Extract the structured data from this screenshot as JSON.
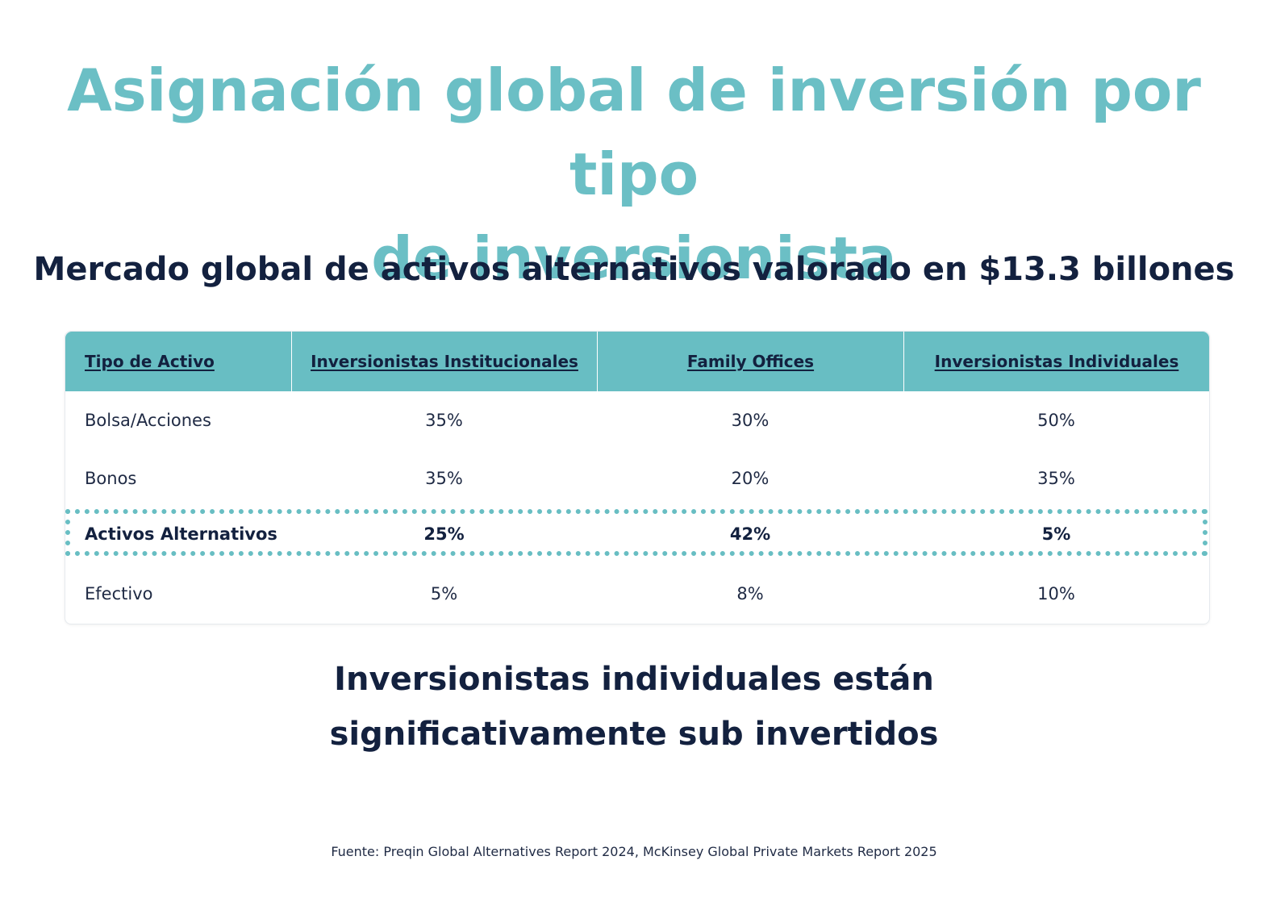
{
  "title_line1": "Asignación global de inversión por tipo",
  "title_line2": "de inversionista",
  "subtitle": "Mercado global de activos alternativos valorado en $13.3 billones",
  "table": {
    "headers": [
      "Tipo de Activo",
      "Inversionistas Institucionales",
      "Family Offices",
      "Inversionistas Individuales"
    ],
    "rows": [
      [
        "Bolsa/Acciones",
        "35%",
        "30%",
        "50%"
      ],
      [
        "Bonos",
        "35%",
        "20%",
        "35%"
      ],
      [
        "Activos Alternativos",
        "25%",
        "42%",
        "5%"
      ],
      [
        "Efectivo",
        "5%",
        "8%",
        "10%"
      ]
    ],
    "highlighted_row": 2,
    "header_color": "#68bec3"
  },
  "conclusion_line1": "Inversionistas individuales están",
  "conclusion_line2": "significativamente sub invertidos",
  "source": "Fuente: Preqin Global Alternatives Report 2024, McKinsey Global Private Markets Report 2025",
  "colors": {
    "title": "#6bbfc5",
    "text": "#13213f",
    "accent": "#68bec3"
  }
}
